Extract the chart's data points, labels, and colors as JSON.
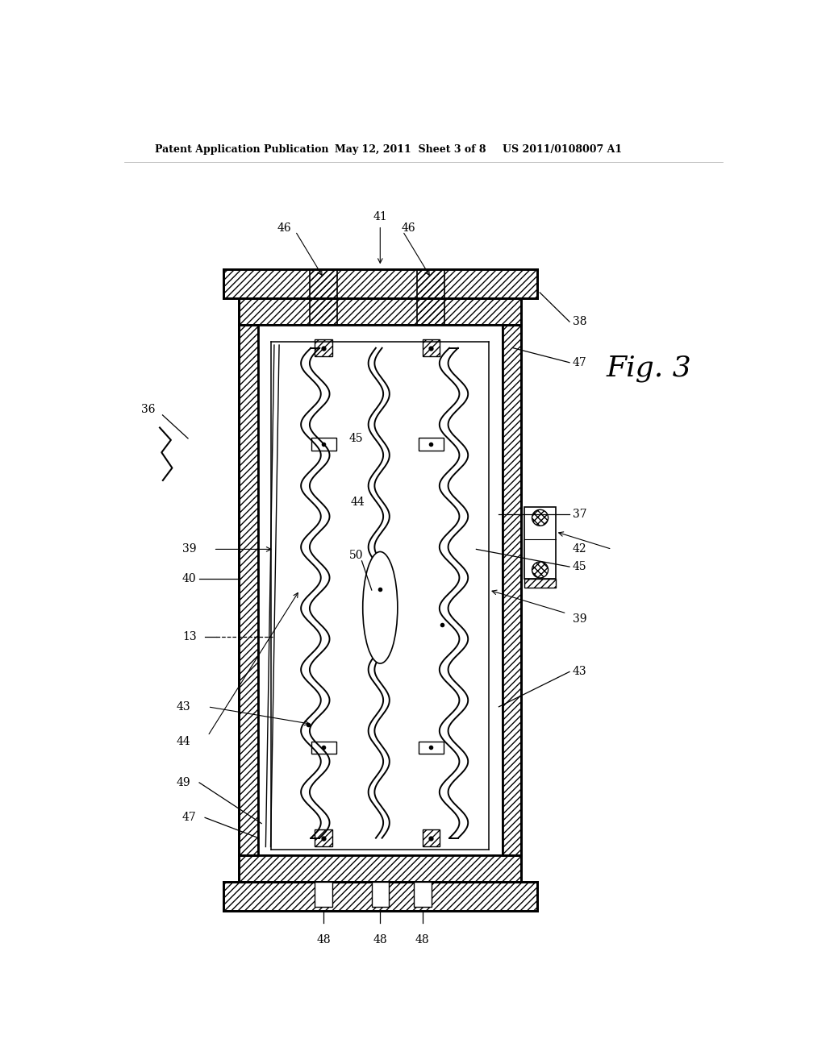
{
  "bg_color": "#ffffff",
  "line_color": "#000000",
  "header_text_left": "Patent Application Publication",
  "header_text_mid": "May 12, 2011  Sheet 3 of 8",
  "header_text_right": "US 2011/0108007 A1",
  "fig3_label": "Fig. 3"
}
